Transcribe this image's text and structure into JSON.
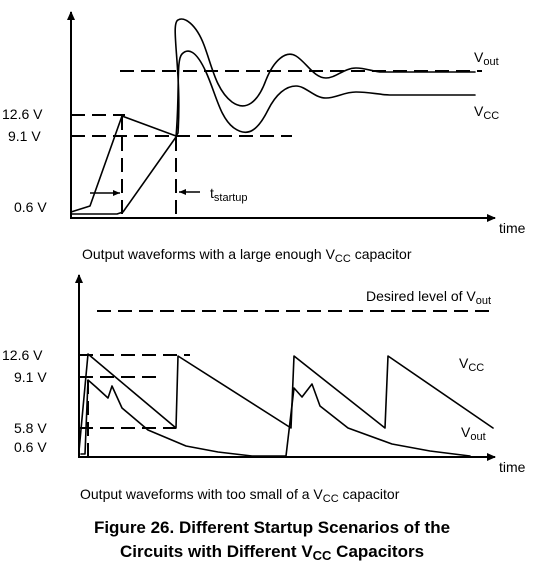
{
  "top_chart": {
    "labels": {
      "y_12_6": "12.6 V",
      "y_9_1": "9.1 V",
      "y_0_6": "0.6 V",
      "time": "time",
      "vout_main": "V",
      "vout_sub": "out",
      "vcc_main": "V",
      "vcc_sub": "CC",
      "tstartup_main": "t",
      "tstartup_sub": "startup"
    },
    "caption": {
      "prefix": "Output waveforms with a large enough V",
      "sub": "CC",
      "suffix": " capacitor"
    }
  },
  "bottom_chart": {
    "labels": {
      "y_12_6": "12.6 V",
      "y_9_1": "9.1 V",
      "y_5_8": "5.8 V",
      "y_0_6": "0.6 V",
      "time": "time",
      "desired_prefix": "Desired level of V",
      "desired_sub": "out",
      "vcc_main": "V",
      "vcc_sub": "CC",
      "vout_main": "V",
      "vout_sub": "out"
    },
    "caption": {
      "prefix": "Output waveforms with too small of a V",
      "sub": "CC",
      "suffix": " capacitor"
    }
  },
  "figure_title": {
    "line1": "Figure 26. Different Startup Scenarios of the",
    "line2_prefix": "Circuits with Different V",
    "line2_sub": "CC",
    "line2_suffix": " Capacitors"
  }
}
